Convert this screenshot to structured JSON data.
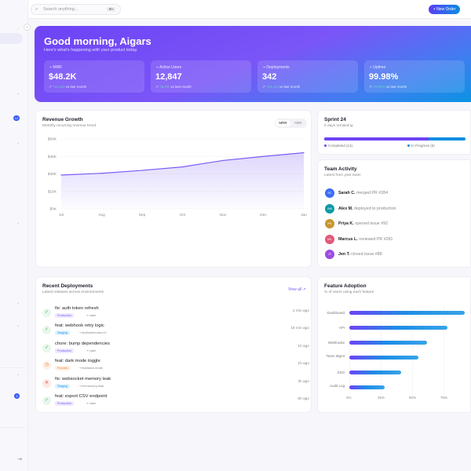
{
  "header": {
    "search_placeholder": "Search anything...",
    "search_shortcut": "⌘K",
    "new_order": "New Order",
    "new_order_icon": "plus-icon"
  },
  "sidebar": {
    "badges": [
      "12",
      "3"
    ]
  },
  "hero": {
    "greeting": "Good morning, Aigars",
    "subtitle": "Here's what's happening with your product today.",
    "stats": [
      {
        "label": "MRR",
        "value": "$48.2K",
        "change": "+12.4%",
        "suffix": "vs last month",
        "icon": "activity-icon"
      },
      {
        "label": "Active Users",
        "value": "12,847",
        "change": "+8.2%",
        "suffix": "vs last month",
        "icon": "users-icon"
      },
      {
        "label": "Deployments",
        "value": "342",
        "change": "+24.1%",
        "suffix": "vs last month",
        "icon": "rocket-icon"
      },
      {
        "label": "Uptime",
        "value": "99.98%",
        "change": "+0.02%",
        "suffix": "vs last month",
        "icon": "pulse-icon"
      }
    ]
  },
  "revenue": {
    "title": "Revenue Growth",
    "subtitle": "Monthly recurring revenue trend",
    "toggle": [
      "MRR",
      "ARR"
    ],
    "active": "MRR"
  },
  "chart_data": [
    {
      "type": "area",
      "categories": [
        "Jul",
        "Aug",
        "Sep",
        "Oct",
        "Nov",
        "Dec",
        "Jan"
      ],
      "values": [
        29,
        30.5,
        33,
        36,
        41.5,
        45,
        48.2
      ],
      "unit": "$K",
      "yticks": [
        "$0K",
        "$15K",
        "$30K",
        "$45K",
        "$60K"
      ],
      "ylim": [
        0,
        60
      ],
      "grid": true,
      "color": "#7c5cf5"
    },
    {
      "type": "bar",
      "orientation": "horizontal",
      "categories": [
        "Dashboard",
        "API",
        "Webhooks",
        "Team Mgmt",
        "SSO",
        "Audit Log"
      ],
      "values": [
        92,
        78,
        62,
        55,
        41,
        28
      ],
      "xticks": [
        "0%",
        "25%",
        "50%",
        "75%"
      ],
      "xlim": [
        0,
        100
      ],
      "grid": true
    }
  ],
  "sprint": {
    "title": "Sprint 24",
    "subtitle": "5 days remaining",
    "completed": 14,
    "in_progress": 5,
    "completed_label": "Completed (14)",
    "in_progress_label": "In Progress (5)",
    "colors": {
      "completed": "#6d43f5",
      "in_progress": "#0a8de0"
    }
  },
  "team": {
    "title": "Team Activity",
    "subtitle": "Latest from your team",
    "items": [
      {
        "initials": "SC",
        "name": "Sarah C.",
        "action": "merged PR #284",
        "color": "#3b6cf6"
      },
      {
        "initials": "AM",
        "name": "Alex M.",
        "action": "deployed to production",
        "color": "#0e9aa7"
      },
      {
        "initials": "PK",
        "name": "Priya K.",
        "action": "opened issue #92",
        "color": "#c9962c"
      },
      {
        "initials": "ML",
        "name": "Marcus L.",
        "action": "reviewed PR #281",
        "color": "#e05a7a"
      },
      {
        "initials": "JT",
        "name": "Jen T.",
        "action": "closed issue #88",
        "color": "#9b4de0"
      }
    ]
  },
  "deployments": {
    "title": "Recent Deployments",
    "subtitle": "Latest releases across environments",
    "view_all": "View all ↗",
    "items": [
      {
        "title": "fix: auth token refresh",
        "env": "Production",
        "branch": "main",
        "time": "2 min ago",
        "status": "success"
      },
      {
        "title": "feat: webhook retry logic",
        "env": "Staging",
        "branch": "feat/webhooks-v2",
        "time": "18 min ago",
        "status": "success"
      },
      {
        "title": "chore: bump dependencies",
        "env": "Production",
        "branch": "main",
        "time": "1h ago",
        "status": "success"
      },
      {
        "title": "feat: dark mode toggle",
        "env": "Preview",
        "branch": "feat/dark-mode",
        "time": "1h ago",
        "status": "pending"
      },
      {
        "title": "fix: websocket memory leak",
        "env": "Staging",
        "branch": "fix/memory-leak",
        "time": "3h ago",
        "status": "failed"
      },
      {
        "title": "feat: export CSV endpoint",
        "env": "Production",
        "branch": "main",
        "time": "5h ago",
        "status": "success"
      }
    ]
  },
  "adoption": {
    "title": "Feature Adoption",
    "subtitle": "% of users using each feature"
  }
}
